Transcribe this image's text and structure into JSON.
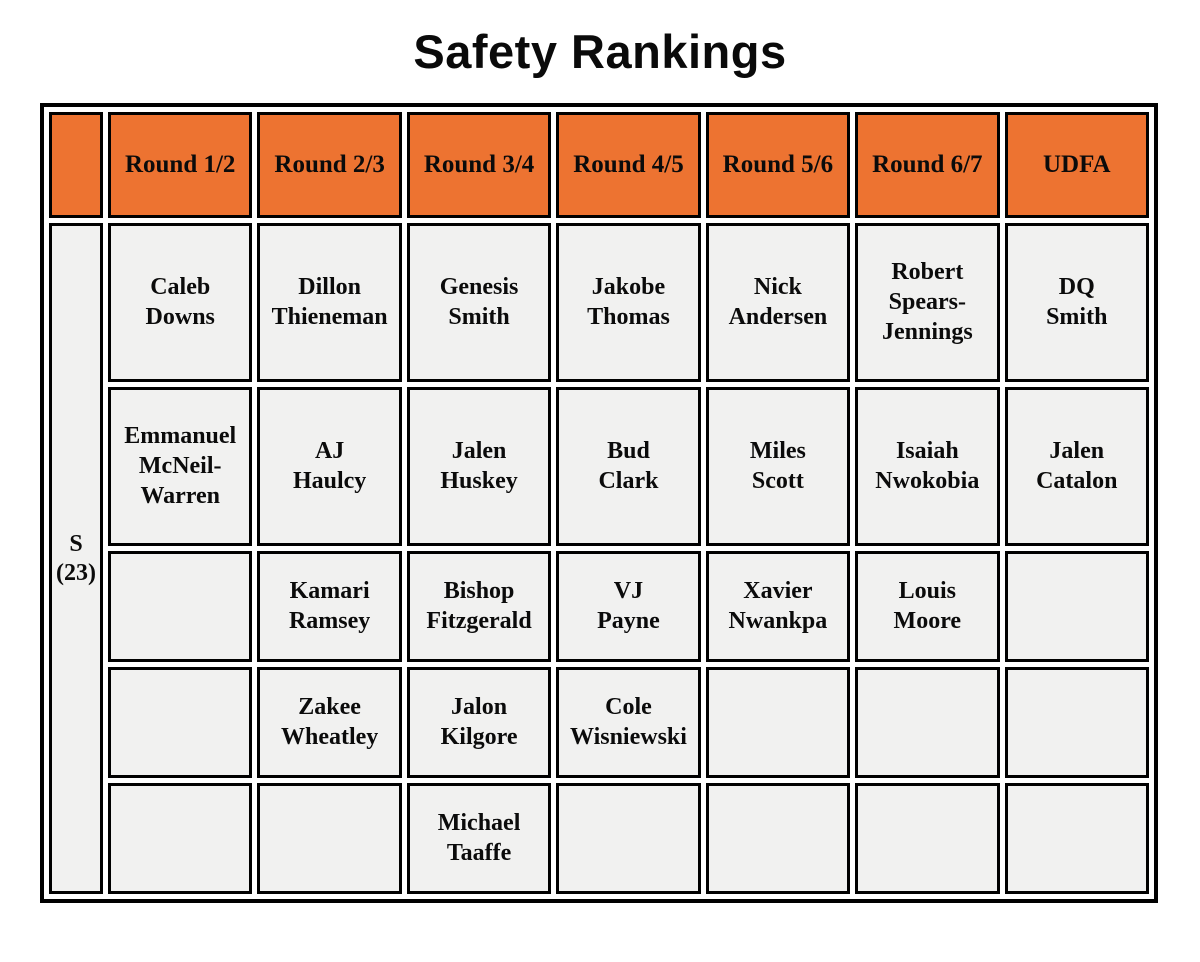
{
  "title": "Safety Rankings",
  "colors": {
    "header_bg": "#ED7331",
    "cell_bg": "#F1F1F0",
    "border": "#000000"
  },
  "table": {
    "row_label": "S\n(23)",
    "corner_label": "",
    "columns": [
      "Round 1/2",
      "Round 2/3",
      "Round 3/4",
      "Round 4/5",
      "Round 5/6",
      "Round 6/7",
      "UDFA"
    ],
    "rows": [
      [
        "Caleb\nDowns",
        "Dillon\nThieneman",
        "Genesis\nSmith",
        "Jakobe\nThomas",
        "Nick\nAndersen",
        "Robert\nSpears-\nJennings",
        "DQ\nSmith"
      ],
      [
        "Emmanuel\nMcNeil-\nWarren",
        "AJ\nHaulcy",
        "Jalen\nHuskey",
        "Bud\nClark",
        "Miles\nScott",
        "Isaiah\nNwokobia",
        "Jalen\nCatalon"
      ],
      [
        "",
        "Kamari\nRamsey",
        "Bishop\nFitzgerald",
        "VJ\nPayne",
        "Xavier\nNwankpa",
        "Louis\nMoore",
        ""
      ],
      [
        "",
        "Zakee\nWheatley",
        "Jalon\nKilgore",
        "Cole\nWisniewski",
        "",
        "",
        ""
      ],
      [
        "",
        "",
        "Michael\nTaaffe",
        "",
        "",
        "",
        ""
      ]
    ]
  }
}
